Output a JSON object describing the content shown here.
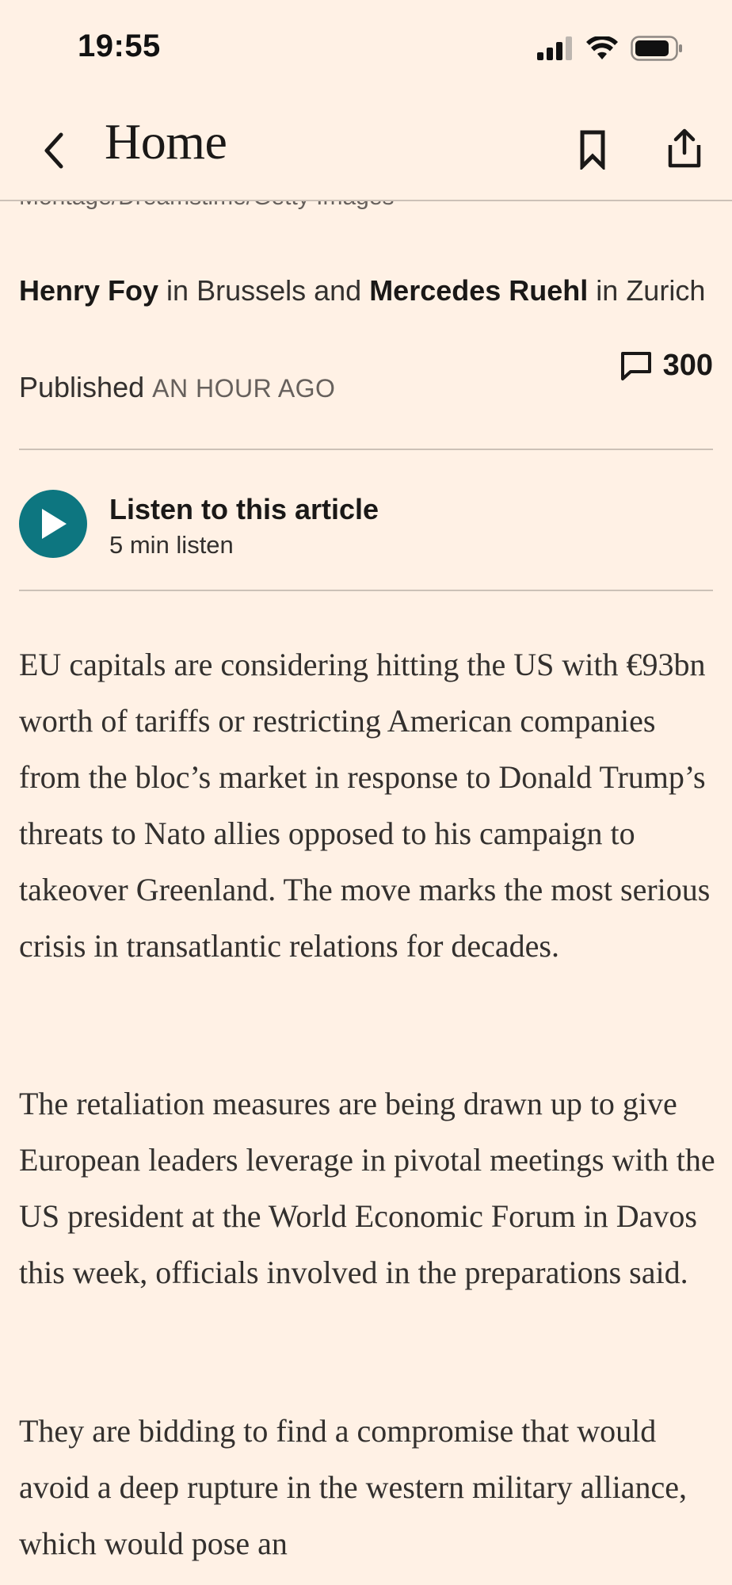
{
  "status_bar": {
    "time": "19:55"
  },
  "nav": {
    "back_label": "Home"
  },
  "caption_partial": "Montage/Dreamstime/Getty Images",
  "byline": {
    "author1": "Henry Foy",
    "location1": " in Brussels and ",
    "author2": "Mercedes Ruehl",
    "location2": " in Zurich"
  },
  "published": {
    "label": "Published ",
    "ago": "AN HOUR AGO"
  },
  "comments": {
    "count": "300"
  },
  "listen": {
    "title": "Listen to this article",
    "duration": "5 min listen"
  },
  "body": {
    "paragraphs": [
      "EU capitals are considering hitting the US with €93bn worth of tariffs or restricting American companies from the bloc’s market in response to Donald Trump’s threats to Nato allies opposed to his campaign to takeover Greenland. The move marks the most serious crisis in transatlantic relations for decades.",
      "The retaliation measures are being drawn up to give European leaders leverage in pivotal meetings with the US president at the World Economic Forum in Davos this week, officials involved in the preparations said.",
      "They are bidding to find a compromise that would avoid a deep rupture in the western military alliance, which would pose an"
    ]
  },
  "colors": {
    "background": "#FFF1E5",
    "accent_teal": "#0D7680",
    "text": "#33302E"
  },
  "icons": [
    "signal-icon",
    "wifi-icon",
    "battery-icon",
    "chevron-left-icon",
    "bookmark-icon",
    "share-icon",
    "comment-icon",
    "play-icon"
  ]
}
